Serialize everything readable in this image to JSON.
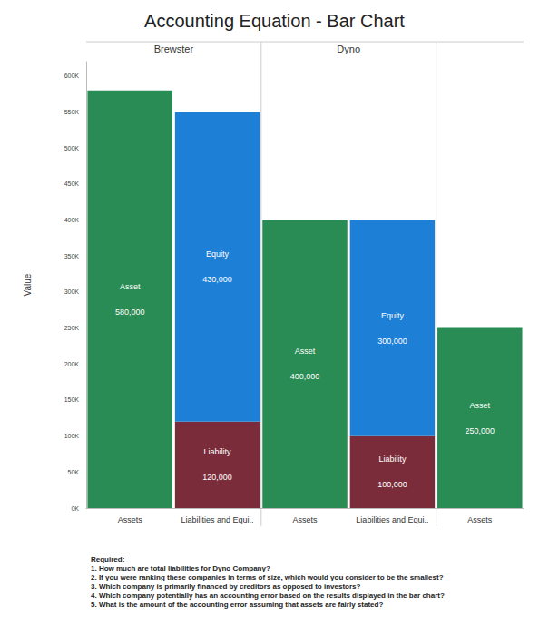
{
  "chart_data": {
    "type": "bar",
    "title": "Accounting Equation - Bar Chart",
    "y_label": "Value",
    "group_labels": [
      "Brewster",
      "Dyno"
    ],
    "categories": [
      "Assets",
      "Liabilities and Equi..",
      "Assets",
      "Liabilities and Equi..",
      "Assets"
    ],
    "series": [
      {
        "name": "Asset",
        "color": "#2a8c55",
        "values": [
          580000,
          null,
          400000,
          null,
          250000
        ],
        "value_labels": [
          "580,000",
          null,
          "400,000",
          null,
          "250,000"
        ]
      },
      {
        "name": "Liability",
        "color": "#7b2c3b",
        "values": [
          null,
          120000,
          null,
          100000,
          null
        ],
        "value_labels": [
          null,
          "120,000",
          null,
          "100,000",
          null
        ]
      },
      {
        "name": "Equity",
        "color": "#1e7fd6",
        "values": [
          null,
          430000,
          null,
          300000,
          null
        ],
        "value_labels": [
          null,
          "430,000",
          null,
          "300,000",
          null
        ]
      }
    ],
    "stacked": true,
    "data_labels": true,
    "grid": false,
    "ylim": [
      0,
      620000
    ],
    "yticks": [
      {
        "value": 0,
        "label": "0K"
      },
      {
        "value": 50000,
        "label": "50K"
      },
      {
        "value": 100000,
        "label": "100K"
      },
      {
        "value": 150000,
        "label": "150K"
      },
      {
        "value": 200000,
        "label": "200K"
      },
      {
        "value": 250000,
        "label": "250K"
      },
      {
        "value": 300000,
        "label": "300K"
      },
      {
        "value": 350000,
        "label": "350K"
      },
      {
        "value": 400000,
        "label": "400K"
      },
      {
        "value": 450000,
        "label": "450K"
      },
      {
        "value": 500000,
        "label": "500K"
      },
      {
        "value": 550000,
        "label": "550K"
      },
      {
        "value": 600000,
        "label": "600K"
      }
    ],
    "annotations": {
      "heading": "Required:",
      "items": [
        "1. How much are total liabilities for Dyno Company?",
        "2. If you were ranking these companies in terms of size, which would you consider to be the smallest?",
        "3. Which company is primarily financed by creditors as opposed to investors?",
        "4. Which company potentially has an accounting error based on the results displayed in the bar chart?",
        "5. What is the amount of the accounting error assuming that assets are fairly stated?"
      ]
    }
  }
}
